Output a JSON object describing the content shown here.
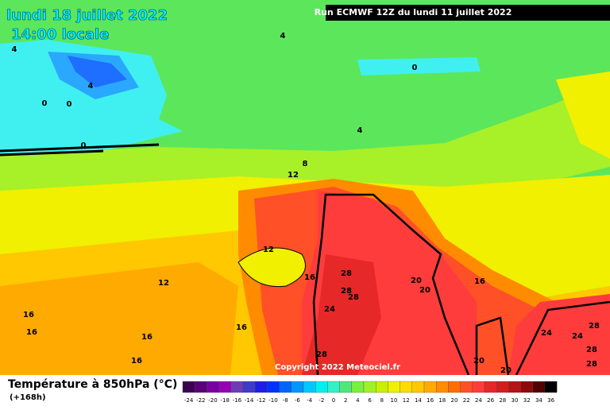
{
  "header": {
    "date": "lundi 18 juillet 2022",
    "time": "14:00 locale",
    "run": "Run ECMWF 12Z du lundi 11 juillet 2022"
  },
  "copyright": "Copyright 2022 Meteociel.fr",
  "contour_labels": [
    "4",
    "4",
    "0",
    "0",
    "0",
    "0",
    "4",
    "4",
    "8",
    "12",
    "12",
    "12",
    "16",
    "16",
    "16",
    "16",
    "16",
    "16",
    "16",
    "20",
    "20",
    "20",
    "20",
    "24",
    "24",
    "24",
    "28",
    "28",
    "28",
    "28",
    "28",
    "28",
    "28"
  ],
  "legend": {
    "title": "Température à 850hPa (°C)",
    "subtitle": "(+168h)",
    "levels": [
      -24,
      -22,
      -20,
      -18,
      -16,
      -14,
      -12,
      -10,
      -8,
      -6,
      -4,
      -2,
      0,
      2,
      4,
      6,
      8,
      10,
      12,
      14,
      16,
      18,
      20,
      22,
      24,
      26,
      28,
      30,
      32,
      34,
      36
    ],
    "colors": [
      "#3c0050",
      "#5a0078",
      "#7800a0",
      "#9600b4",
      "#6e3cb4",
      "#3c3cc8",
      "#1e1ee6",
      "#0032ff",
      "#0064ff",
      "#0096ff",
      "#00c8ff",
      "#00f0f0",
      "#32f0c8",
      "#50e678",
      "#78f03c",
      "#a0f028",
      "#c8f000",
      "#f0f000",
      "#ffdc00",
      "#ffc800",
      "#ffaa00",
      "#ff8c00",
      "#ff6e00",
      "#ff5028",
      "#ff3c3c",
      "#e62828",
      "#d21e1e",
      "#b41414",
      "#8c0a0a",
      "#500000",
      "#000000"
    ]
  }
}
